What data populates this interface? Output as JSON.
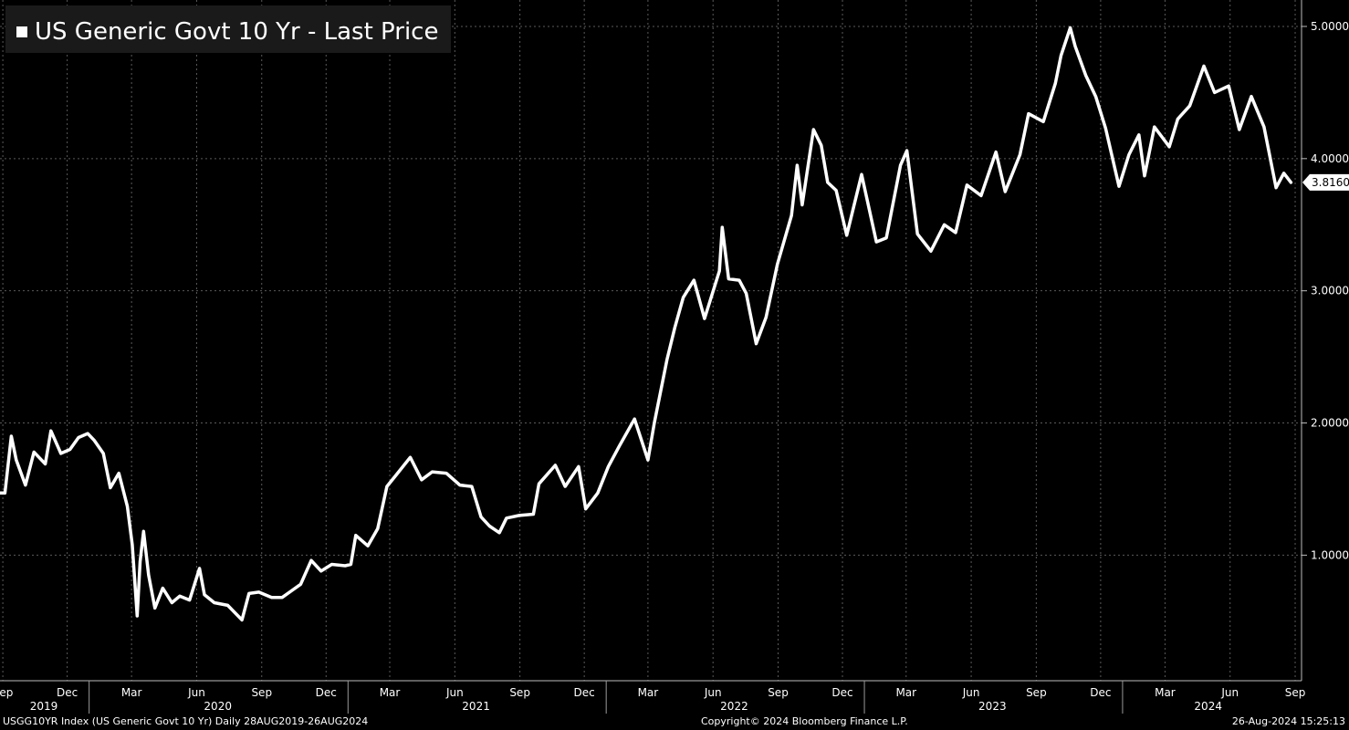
{
  "chart_data": {
    "type": "line",
    "title": "US Generic Govt 10 Yr - Last Price",
    "series": [
      {
        "name": "US Generic Govt 10 Yr - Last Price",
        "color": "#ffffff",
        "last_value_label": "3.8160",
        "points": [
          [
            "2019-08-28",
            1.47
          ],
          [
            "2019-09-04",
            1.47
          ],
          [
            "2019-09-13",
            1.9
          ],
          [
            "2019-09-20",
            1.72
          ],
          [
            "2019-10-03",
            1.53
          ],
          [
            "2019-10-15",
            1.78
          ],
          [
            "2019-10-31",
            1.69
          ],
          [
            "2019-11-08",
            1.94
          ],
          [
            "2019-11-22",
            1.77
          ],
          [
            "2019-12-05",
            1.8
          ],
          [
            "2019-12-17",
            1.89
          ],
          [
            "2019-12-30",
            1.92
          ],
          [
            "2020-01-08",
            1.87
          ],
          [
            "2020-01-21",
            1.77
          ],
          [
            "2020-01-31",
            1.51
          ],
          [
            "2020-02-12",
            1.62
          ],
          [
            "2020-02-24",
            1.37
          ],
          [
            "2020-03-02",
            1.08
          ],
          [
            "2020-03-09",
            0.54
          ],
          [
            "2020-03-13",
            0.95
          ],
          [
            "2020-03-18",
            1.18
          ],
          [
            "2020-03-25",
            0.85
          ],
          [
            "2020-04-03",
            0.6
          ],
          [
            "2020-04-14",
            0.75
          ],
          [
            "2020-04-27",
            0.64
          ],
          [
            "2020-05-08",
            0.69
          ],
          [
            "2020-05-22",
            0.66
          ],
          [
            "2020-06-05",
            0.9
          ],
          [
            "2020-06-12",
            0.7
          ],
          [
            "2020-06-26",
            0.64
          ],
          [
            "2020-07-15",
            0.62
          ],
          [
            "2020-08-04",
            0.51
          ],
          [
            "2020-08-14",
            0.71
          ],
          [
            "2020-08-28",
            0.72
          ],
          [
            "2020-09-15",
            0.68
          ],
          [
            "2020-09-30",
            0.68
          ],
          [
            "2020-10-13",
            0.73
          ],
          [
            "2020-10-26",
            0.78
          ],
          [
            "2020-11-10",
            0.96
          ],
          [
            "2020-11-24",
            0.88
          ],
          [
            "2020-12-09",
            0.93
          ],
          [
            "2020-12-28",
            0.92
          ],
          [
            "2021-01-05",
            0.93
          ],
          [
            "2021-01-12",
            1.15
          ],
          [
            "2021-01-29",
            1.07
          ],
          [
            "2021-02-12",
            1.2
          ],
          [
            "2021-02-25",
            1.52
          ],
          [
            "2021-03-12",
            1.62
          ],
          [
            "2021-03-30",
            1.74
          ],
          [
            "2021-04-15",
            1.57
          ],
          [
            "2021-04-30",
            1.63
          ],
          [
            "2021-05-20",
            1.62
          ],
          [
            "2021-06-08",
            1.53
          ],
          [
            "2021-06-25",
            1.52
          ],
          [
            "2021-07-08",
            1.29
          ],
          [
            "2021-07-20",
            1.22
          ],
          [
            "2021-08-03",
            1.17
          ],
          [
            "2021-08-13",
            1.28
          ],
          [
            "2021-08-31",
            1.3
          ],
          [
            "2021-09-20",
            1.31
          ],
          [
            "2021-09-28",
            1.54
          ],
          [
            "2021-10-21",
            1.68
          ],
          [
            "2021-11-04",
            1.52
          ],
          [
            "2021-11-23",
            1.67
          ],
          [
            "2021-12-03",
            1.35
          ],
          [
            "2021-12-20",
            1.47
          ],
          [
            "2022-01-04",
            1.67
          ],
          [
            "2022-01-20",
            1.83
          ],
          [
            "2022-02-10",
            2.03
          ],
          [
            "2022-03-01",
            1.72
          ],
          [
            "2022-03-10",
            2.0
          ],
          [
            "2022-03-28",
            2.48
          ],
          [
            "2022-04-08",
            2.72
          ],
          [
            "2022-04-20",
            2.95
          ],
          [
            "2022-05-05",
            3.08
          ],
          [
            "2022-05-20",
            2.79
          ],
          [
            "2022-06-10",
            3.15
          ],
          [
            "2022-06-14",
            3.48
          ],
          [
            "2022-06-23",
            3.09
          ],
          [
            "2022-07-08",
            3.08
          ],
          [
            "2022-07-18",
            2.98
          ],
          [
            "2022-08-01",
            2.6
          ],
          [
            "2022-08-15",
            2.8
          ],
          [
            "2022-08-31",
            3.2
          ],
          [
            "2022-09-20",
            3.57
          ],
          [
            "2022-09-28",
            3.95
          ],
          [
            "2022-10-05",
            3.65
          ],
          [
            "2022-10-21",
            4.22
          ],
          [
            "2022-11-01",
            4.1
          ],
          [
            "2022-11-10",
            3.82
          ],
          [
            "2022-11-22",
            3.76
          ],
          [
            "2022-12-07",
            3.42
          ],
          [
            "2022-12-28",
            3.88
          ],
          [
            "2023-01-18",
            3.37
          ],
          [
            "2023-02-01",
            3.4
          ],
          [
            "2023-02-21",
            3.95
          ],
          [
            "2023-03-02",
            4.06
          ],
          [
            "2023-03-17",
            3.43
          ],
          [
            "2023-04-05",
            3.3
          ],
          [
            "2023-04-24",
            3.5
          ],
          [
            "2023-05-10",
            3.44
          ],
          [
            "2023-05-26",
            3.8
          ],
          [
            "2023-06-15",
            3.72
          ],
          [
            "2023-07-06",
            4.05
          ],
          [
            "2023-07-19",
            3.75
          ],
          [
            "2023-08-09",
            4.03
          ],
          [
            "2023-08-21",
            4.34
          ],
          [
            "2023-09-11",
            4.28
          ],
          [
            "2023-09-28",
            4.57
          ],
          [
            "2023-10-06",
            4.78
          ],
          [
            "2023-10-19",
            4.99
          ],
          [
            "2023-10-26",
            4.85
          ],
          [
            "2023-11-10",
            4.63
          ],
          [
            "2023-11-24",
            4.47
          ],
          [
            "2023-12-08",
            4.23
          ],
          [
            "2023-12-27",
            3.79
          ],
          [
            "2024-01-10",
            4.03
          ],
          [
            "2024-01-24",
            4.18
          ],
          [
            "2024-02-01",
            3.87
          ],
          [
            "2024-02-15",
            4.24
          ],
          [
            "2024-03-07",
            4.09
          ],
          [
            "2024-03-19",
            4.3
          ],
          [
            "2024-04-05",
            4.4
          ],
          [
            "2024-04-25",
            4.7
          ],
          [
            "2024-05-10",
            4.5
          ],
          [
            "2024-05-30",
            4.55
          ],
          [
            "2024-06-14",
            4.22
          ],
          [
            "2024-07-01",
            4.47
          ],
          [
            "2024-07-19",
            4.24
          ],
          [
            "2024-08-05",
            3.78
          ],
          [
            "2024-08-16",
            3.89
          ],
          [
            "2024-08-26",
            3.82
          ]
        ]
      }
    ],
    "y_axis": {
      "position": "right",
      "ylim": [
        0.05,
        5.2
      ],
      "ticks": [
        "1.0000",
        "2.0000",
        "3.0000",
        "4.0000",
        "5.0000"
      ],
      "tick_values": [
        1,
        2,
        3,
        4,
        5
      ]
    },
    "x_axis": {
      "xlim": [
        "2019-08-28",
        "2024-09-10"
      ],
      "month_ticks": [
        {
          "label": "Sep",
          "date": "2019-09-01"
        },
        {
          "label": "Dec",
          "date": "2019-12-01"
        },
        {
          "label": "Mar",
          "date": "2020-03-01"
        },
        {
          "label": "Jun",
          "date": "2020-06-01"
        },
        {
          "label": "Sep",
          "date": "2020-09-01"
        },
        {
          "label": "Dec",
          "date": "2020-12-01"
        },
        {
          "label": "Mar",
          "date": "2021-03-01"
        },
        {
          "label": "Jun",
          "date": "2021-06-01"
        },
        {
          "label": "Sep",
          "date": "2021-09-01"
        },
        {
          "label": "Dec",
          "date": "2021-12-01"
        },
        {
          "label": "Mar",
          "date": "2022-03-01"
        },
        {
          "label": "Jun",
          "date": "2022-06-01"
        },
        {
          "label": "Sep",
          "date": "2022-09-01"
        },
        {
          "label": "Dec",
          "date": "2022-12-01"
        },
        {
          "label": "Mar",
          "date": "2023-03-01"
        },
        {
          "label": "Jun",
          "date": "2023-06-01"
        },
        {
          "label": "Sep",
          "date": "2023-09-01"
        },
        {
          "label": "Dec",
          "date": "2023-12-01"
        },
        {
          "label": "Mar",
          "date": "2024-03-01"
        },
        {
          "label": "Jun",
          "date": "2024-06-01"
        },
        {
          "label": "Sep",
          "date": "2024-09-01"
        }
      ],
      "year_labels": [
        {
          "label": "2019",
          "date": "2019-10-29"
        },
        {
          "label": "2020",
          "date": "2020-07-01"
        },
        {
          "label": "2021",
          "date": "2021-07-01"
        },
        {
          "label": "2022",
          "date": "2022-07-01"
        },
        {
          "label": "2023",
          "date": "2023-07-01"
        },
        {
          "label": "2024",
          "date": "2024-05-01"
        }
      ],
      "year_separators": [
        "2020-01-01",
        "2021-01-01",
        "2022-01-01",
        "2023-01-01",
        "2024-01-01"
      ]
    },
    "grid": true,
    "legend": "top-left"
  },
  "footer": {
    "left": "USGG10YR Index (US Generic Govt 10 Yr) Daily 28AUG2019-26AUG2024",
    "center": "Copyright© 2024 Bloomberg Finance L.P.",
    "right": "26-Aug-2024 15:25:13"
  },
  "colors": {
    "background": "#000000",
    "line": "#ffffff",
    "grid": "#5a5a5a",
    "legend_box": "#1a1a1a"
  }
}
